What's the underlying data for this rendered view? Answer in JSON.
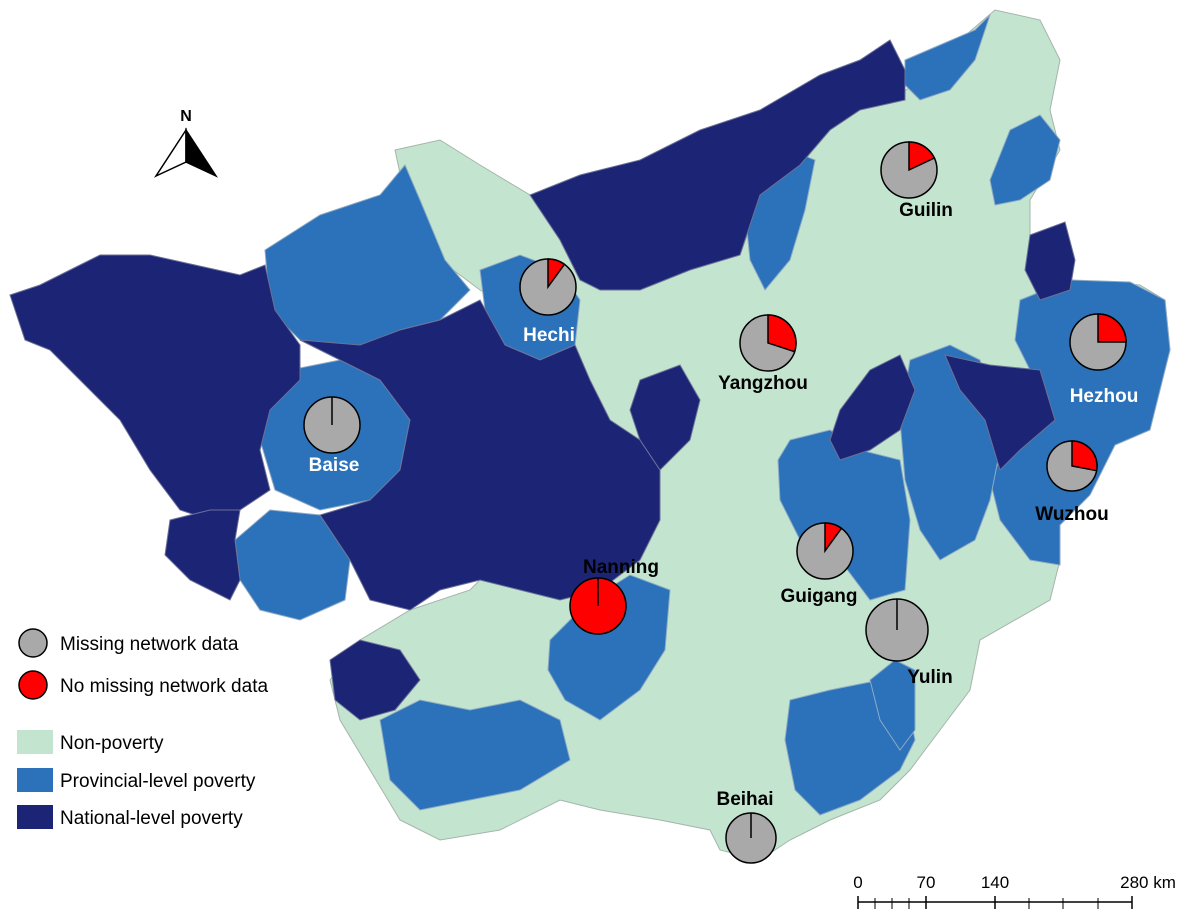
{
  "colors": {
    "non_poverty": "#c3e5cf",
    "provincial_poverty": "#2b72ba",
    "national_poverty": "#1c2476",
    "missing": "#a9a9a9",
    "no_missing": "#ff0000"
  },
  "north_arrow": {
    "label": "N"
  },
  "cities": [
    {
      "id": "guilin",
      "name": "Guilin",
      "label_color": "#000000",
      "no_missing_fraction": 0.18
    },
    {
      "id": "hechi",
      "name": "Hechi",
      "label_color": "#ffffff",
      "no_missing_fraction": 0.1
    },
    {
      "id": "yangzhou",
      "name": "Yangzhou",
      "label_color": "#000000",
      "no_missing_fraction": 0.3
    },
    {
      "id": "hezhou",
      "name": "Hezhou",
      "label_color": "#ffffff",
      "no_missing_fraction": 0.25
    },
    {
      "id": "baise",
      "name": "Baise",
      "label_color": "#ffffff",
      "no_missing_fraction": 0.0
    },
    {
      "id": "wuzhou",
      "name": "Wuzhou",
      "label_color": "#000000",
      "no_missing_fraction": 0.28
    },
    {
      "id": "nanning",
      "name": "Nanning",
      "label_color": "#000000",
      "no_missing_fraction": 1.0
    },
    {
      "id": "guigang",
      "name": "Guigang",
      "label_color": "#000000",
      "no_missing_fraction": 0.1
    },
    {
      "id": "yulin",
      "name": "Yulin",
      "label_color": "#000000",
      "no_missing_fraction": 0.0
    },
    {
      "id": "beihai",
      "name": "Beihai",
      "label_color": "#000000",
      "no_missing_fraction": 0.0
    }
  ],
  "legend": {
    "missing": "Missing network data",
    "no_missing": "No missing network data",
    "non_poverty": "Non-poverty",
    "provincial": "Provincial-level poverty",
    "national": "National-level poverty"
  },
  "scale_bar": {
    "ticks": [
      "0",
      "70",
      "140",
      "280 km"
    ]
  }
}
